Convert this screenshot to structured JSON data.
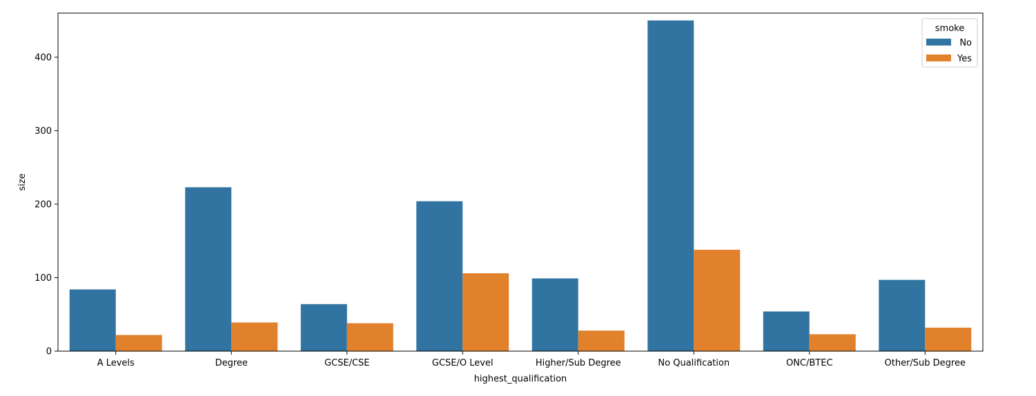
{
  "chart_data": {
    "type": "bar",
    "xlabel": "highest_qualification",
    "ylabel": "size",
    "ylim": [
      0,
      460
    ],
    "yticks": [
      0,
      100,
      200,
      300,
      400
    ],
    "categories": [
      "A Levels",
      "Degree",
      "GCSE/CSE",
      "GCSE/O Level",
      "Higher/Sub Degree",
      "No Qualification",
      "ONC/BTEC",
      "Other/Sub Degree"
    ],
    "series": [
      {
        "name": "No",
        "color": "#3274a1",
        "values": [
          84,
          223,
          64,
          204,
          99,
          450,
          54,
          97
        ]
      },
      {
        "name": "Yes",
        "color": "#e1812c",
        "values": [
          22,
          39,
          38,
          106,
          28,
          138,
          23,
          32
        ]
      }
    ],
    "legend": {
      "title": "smoke",
      "position": "top-right"
    },
    "grid": false
  }
}
